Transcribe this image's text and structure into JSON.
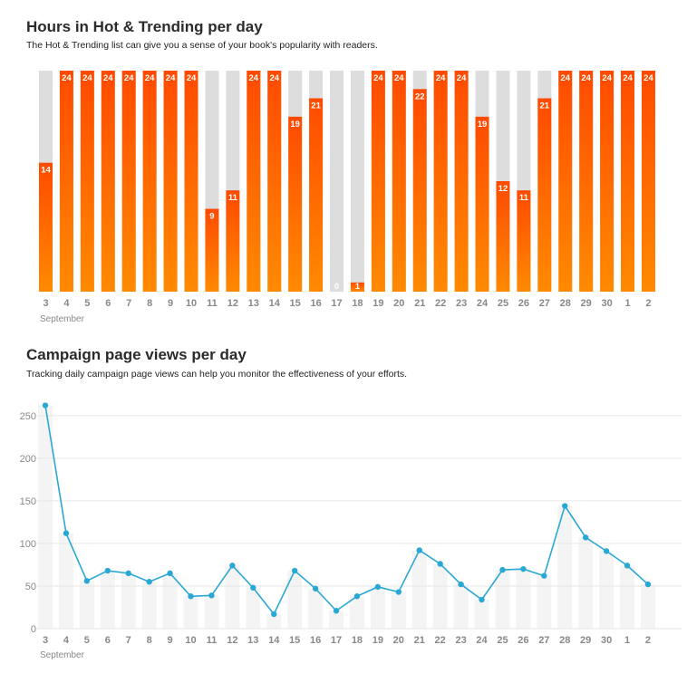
{
  "chart_data": [
    {
      "type": "bar",
      "title": "Hours in Hot & Trending per day",
      "subtitle": "The Hot & Trending list can give you a sense of your book's popularity with readers.",
      "categories": [
        "3",
        "4",
        "5",
        "6",
        "7",
        "8",
        "9",
        "10",
        "11",
        "12",
        "13",
        "14",
        "15",
        "16",
        "17",
        "18",
        "19",
        "20",
        "21",
        "22",
        "23",
        "24",
        "25",
        "26",
        "27",
        "28",
        "29",
        "30",
        "1",
        "2"
      ],
      "month_label": "September",
      "values": [
        14,
        24,
        24,
        24,
        24,
        24,
        24,
        24,
        9,
        11,
        24,
        24,
        19,
        21,
        0,
        1,
        24,
        24,
        22,
        24,
        24,
        19,
        12,
        11,
        21,
        24,
        24,
        24,
        24,
        24
      ],
      "ylim": [
        0,
        24
      ],
      "colors": {
        "bar_top": "#ff4a00",
        "bar_bottom": "#ff8a00",
        "track": "#dddddd",
        "label": "#ffffff"
      }
    },
    {
      "type": "line",
      "title": "Campaign page views per day",
      "subtitle": "Tracking daily campaign page views can help you monitor the effectiveness of your efforts.",
      "categories": [
        "3",
        "4",
        "5",
        "6",
        "7",
        "8",
        "9",
        "10",
        "11",
        "12",
        "13",
        "14",
        "15",
        "16",
        "17",
        "18",
        "19",
        "20",
        "21",
        "22",
        "23",
        "24",
        "25",
        "26",
        "27",
        "28",
        "29",
        "30",
        "1",
        "2"
      ],
      "month_label": "September",
      "values": [
        262,
        112,
        56,
        68,
        65,
        55,
        65,
        38,
        39,
        74,
        48,
        17,
        68,
        47,
        21,
        38,
        49,
        43,
        92,
        76,
        52,
        34,
        69,
        70,
        62,
        144,
        107,
        91,
        74,
        52
      ],
      "yticks": [
        0,
        50,
        100,
        150,
        200,
        250
      ],
      "ylim": [
        0,
        270
      ],
      "grid": true,
      "colors": {
        "line": "#2aa8d4",
        "point": "#2aa8d4",
        "bg_bar": "#f4f4f4",
        "grid": "#e6e6e6"
      }
    }
  ]
}
